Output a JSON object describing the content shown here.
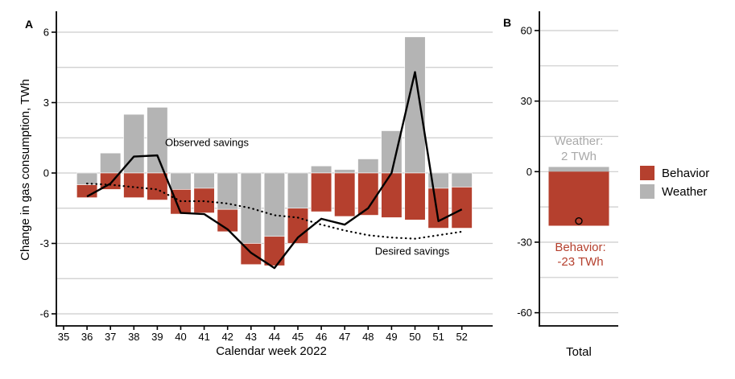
{
  "panels": {
    "a": {
      "letter": "A",
      "ylabel": "Change in gas consumption, TWh",
      "xlabel": "Calendar week 2022",
      "annotations": {
        "observed": "Observed savings",
        "desired": "Desired savings"
      }
    },
    "b": {
      "letter": "B",
      "xlabel": "Total",
      "weather_note_line1": "Weather:",
      "weather_note_line2": "2 TWh",
      "behavior_note_line1": "Behavior:",
      "behavior_note_line2": "-23 TWh"
    }
  },
  "legend": {
    "items": [
      {
        "label": "Behavior",
        "color": "#b5402e"
      },
      {
        "label": "Weather",
        "color": "#b4b4b4"
      }
    ]
  },
  "colors": {
    "behavior": "#b5402e",
    "weather": "#b4b4b4",
    "grid": "#cccccc",
    "axis": "#000000",
    "weather_note": "#a9a9a9",
    "behavior_note": "#b5402e"
  },
  "chart_data": [
    {
      "panel": "A",
      "type": "bar-line",
      "title": "",
      "xlabel": "Calendar week 2022",
      "ylabel": "Change in gas consumption, TWh",
      "x_tick_weeks": [
        35,
        36,
        37,
        38,
        39,
        40,
        41,
        42,
        43,
        44,
        45,
        46,
        47,
        48,
        49,
        50,
        51,
        52
      ],
      "categories": [
        36,
        37,
        38,
        39,
        40,
        41,
        42,
        43,
        44,
        45,
        46,
        47,
        48,
        49,
        50,
        51,
        52
      ],
      "series": [
        {
          "name": "Weather",
          "color": "#b4b4b4",
          "values": [
            -0.5,
            0.85,
            2.5,
            2.8,
            -0.7,
            -0.65,
            -1.55,
            -3.0,
            -2.7,
            -1.5,
            0.3,
            0.15,
            0.6,
            1.8,
            5.8,
            -0.65,
            -0.6
          ]
        },
        {
          "name": "Behavior",
          "color": "#b5402e",
          "values": [
            -0.55,
            -0.7,
            -1.05,
            -1.15,
            -1.05,
            -1.05,
            -0.95,
            -0.9,
            -1.25,
            -1.5,
            -1.65,
            -1.85,
            -1.8,
            -1.9,
            -2.0,
            -1.7,
            -1.75
          ]
        }
      ],
      "lines": [
        {
          "name": "Observed savings",
          "style": "solid",
          "values": [
            -1.0,
            -0.45,
            0.7,
            0.75,
            -1.7,
            -1.75,
            -2.4,
            -3.4,
            -4.05,
            -2.75,
            -1.95,
            -2.2,
            -1.5,
            0.0,
            4.3,
            -2.05,
            -1.55
          ]
        },
        {
          "name": "Desired savings",
          "style": "dotted",
          "values": [
            -0.45,
            -0.5,
            -0.6,
            -0.7,
            -1.2,
            -1.2,
            -1.3,
            -1.5,
            -1.8,
            -1.9,
            -2.2,
            -2.45,
            -2.65,
            -2.75,
            -2.8,
            -2.65,
            -2.5
          ]
        }
      ],
      "ylim": [
        -6.6,
        6.9
      ],
      "grid_values": [
        6,
        4.5,
        3,
        1.5,
        0,
        -1.5,
        -3,
        -4.5,
        -6
      ],
      "ytick_values": [
        6,
        3,
        0,
        -3,
        -6
      ],
      "ytick_labels": [
        "6",
        "3",
        "0",
        "-3",
        "-6"
      ],
      "grid": true
    },
    {
      "panel": "B",
      "type": "bar",
      "title": "",
      "xlabel": "Total",
      "categories": [
        "Total"
      ],
      "series": [
        {
          "name": "Weather",
          "color": "#b4b4b4",
          "values": [
            2
          ]
        },
        {
          "name": "Behavior",
          "color": "#b5402e",
          "values": [
            -23
          ]
        }
      ],
      "marker": {
        "name": "Observed total",
        "shape": "open-circle",
        "value": -21
      },
      "ylim": [
        -65,
        66
      ],
      "grid_values": [
        60,
        45,
        30,
        15,
        0,
        -15,
        -30,
        -45,
        -60
      ],
      "ytick_values": [
        60,
        30,
        0,
        -30,
        -60
      ],
      "ytick_labels": [
        "60",
        "30",
        "0",
        "-30",
        "-60"
      ],
      "grid": true
    }
  ]
}
